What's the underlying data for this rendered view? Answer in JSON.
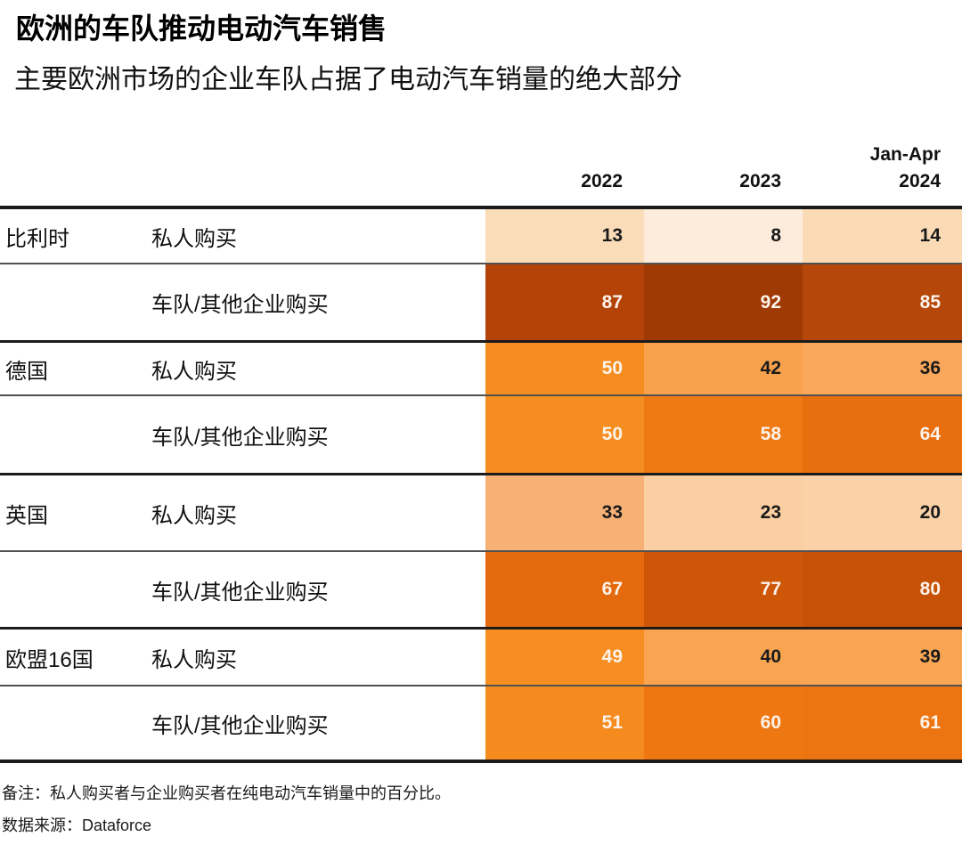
{
  "title": "欧洲的车队推动电动汽车销售",
  "subtitle": "主要欧洲市场的企业车队占据了电动汽车销量的绝大部分",
  "headers": [
    {
      "top": "",
      "year": "2022"
    },
    {
      "top": "",
      "year": "2023"
    },
    {
      "top": "Jan-Apr",
      "year": "2024"
    }
  ],
  "table": {
    "groups": [
      {
        "country": "比利时",
        "rows": [
          {
            "label": "私人购买",
            "values": [
              "13",
              "8",
              "14"
            ],
            "bg": [
              "#fadcb8",
              "#fdecdc",
              "#fadbb6"
            ],
            "fg": [
              "#1a1a1a",
              "#1a1a1a",
              "#1a1a1a"
            ]
          },
          {
            "label": "车队/其他企业购买",
            "values": [
              "87",
              "92",
              "85"
            ],
            "bg": [
              "#b34309",
              "#a03a05",
              "#b5470b"
            ],
            "fg": [
              "#fcf3ea",
              "#fcf3ea",
              "#fcf3ea"
            ]
          }
        ]
      },
      {
        "country": "德国",
        "rows": [
          {
            "label": "私人购买",
            "values": [
              "50",
              "42",
              "36"
            ],
            "bg": [
              "#f68d20",
              "#f8a24d",
              "#f9a75a"
            ],
            "fg": [
              "#fcf3ea",
              "#1a1a1a",
              "#1a1a1a"
            ]
          },
          {
            "label": "车队/其他企业购买",
            "values": [
              "50",
              "58",
              "64"
            ],
            "bg": [
              "#f68d20",
              "#ef7a14",
              "#e96e0e"
            ],
            "fg": [
              "#fcf3ea",
              "#fcf3ea",
              "#fcf3ea"
            ]
          }
        ]
      },
      {
        "country": "英国",
        "rows": [
          {
            "label": "私人购买",
            "values": [
              "33",
              "23",
              "20"
            ],
            "bg": [
              "#f8b175",
              "#fbcfa2",
              "#fbd1a7"
            ],
            "fg": [
              "#1a1a1a",
              "#1a1a1a",
              "#1a1a1a"
            ]
          },
          {
            "label": "车队/其他企业购买",
            "values": [
              "67",
              "77",
              "80"
            ],
            "bg": [
              "#e5690d",
              "#ce5608",
              "#c75207"
            ],
            "fg": [
              "#fcf3ea",
              "#fcf3ea",
              "#fcf3ea"
            ]
          }
        ]
      },
      {
        "country": "欧盟16国",
        "rows": [
          {
            "label": "私人购买",
            "values": [
              "49",
              "40",
              "39"
            ],
            "bg": [
              "#f68e22",
              "#f8a450",
              "#f8a554"
            ],
            "fg": [
              "#fcf3ea",
              "#1a1a1a",
              "#1a1a1a"
            ]
          },
          {
            "label": "车队/其他企业购买",
            "values": [
              "51",
              "60",
              "61"
            ],
            "bg": [
              "#f58b1e",
              "#ee7712",
              "#ed7511"
            ],
            "fg": [
              "#fcf3ea",
              "#fcf3ea",
              "#fcf3ea"
            ]
          }
        ]
      }
    ]
  },
  "notes": {
    "note": "备注：私人购买者与企业购买者在纯电动汽车销量中的百分比。",
    "source": "数据来源：Dataforce"
  },
  "colors": {
    "line_thick": "#1b1b1b",
    "line_thin": "#515151",
    "text": "#1a1a1a",
    "value_text_light": "#fcf3ea"
  },
  "chart_data": {
    "type": "heatmap",
    "title": "欧洲的车队推动电动汽车销售",
    "subtitle": "主要欧洲市场的企业车队占据了电动汽车销量的绝大部分",
    "categories": [
      "2022",
      "2023",
      "Jan-Apr 2024"
    ],
    "unit": "percent",
    "value_range": [
      0,
      100
    ],
    "series": [
      {
        "country": "比利时",
        "segment": "私人购买",
        "values": [
          13,
          8,
          14
        ]
      },
      {
        "country": "比利时",
        "segment": "车队/其他企业购买",
        "values": [
          87,
          92,
          85
        ]
      },
      {
        "country": "德国",
        "segment": "私人购买",
        "values": [
          50,
          42,
          36
        ]
      },
      {
        "country": "德国",
        "segment": "车队/其他企业购买",
        "values": [
          50,
          58,
          64
        ]
      },
      {
        "country": "英国",
        "segment": "私人购买",
        "values": [
          33,
          23,
          20
        ]
      },
      {
        "country": "英国",
        "segment": "车队/其他企业购买",
        "values": [
          67,
          77,
          80
        ]
      },
      {
        "country": "欧盟16国",
        "segment": "私人购买",
        "values": [
          49,
          40,
          39
        ]
      },
      {
        "country": "欧盟16国",
        "segment": "车队/其他企业购买",
        "values": [
          51,
          60,
          61
        ]
      }
    ],
    "color_scale": "sequential orange: light (low %) to dark red-orange (high %)",
    "note": "备注：私人购买者与企业购买者在纯电动汽车销量中的百分比。",
    "source": "Dataforce"
  }
}
